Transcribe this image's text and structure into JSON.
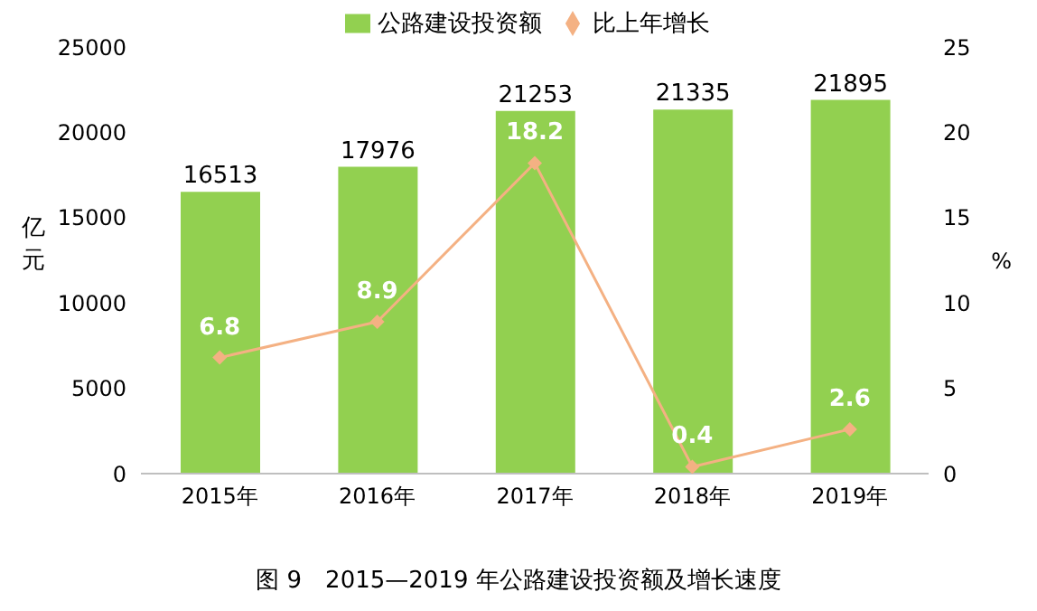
{
  "chart_data": {
    "type": "bar",
    "title": "图 9　2015—2019 年公路建设投资额及增长速度",
    "categories": [
      "2015年",
      "2016年",
      "2017年",
      "2018年",
      "2019年"
    ],
    "series": [
      {
        "name": "公路建设投资额",
        "color": "#92d050",
        "values": [
          16513,
          17976,
          21253,
          21335,
          21895
        ]
      },
      {
        "name": "比上年增长",
        "type": "line",
        "axis": "y2",
        "color": "#f4b183",
        "values": [
          6.8,
          8.9,
          18.2,
          0.4,
          2.6
        ]
      }
    ],
    "ylabel": "亿元",
    "y2label": "%",
    "ylim": [
      0,
      25000
    ],
    "yticks": [
      0,
      5000,
      10000,
      15000,
      20000,
      25000
    ],
    "y2lim": [
      0,
      25
    ],
    "y2ticks": [
      0,
      5,
      10,
      15,
      20,
      25
    ],
    "data_labels": true,
    "legend": "top",
    "marker": "diamond"
  }
}
